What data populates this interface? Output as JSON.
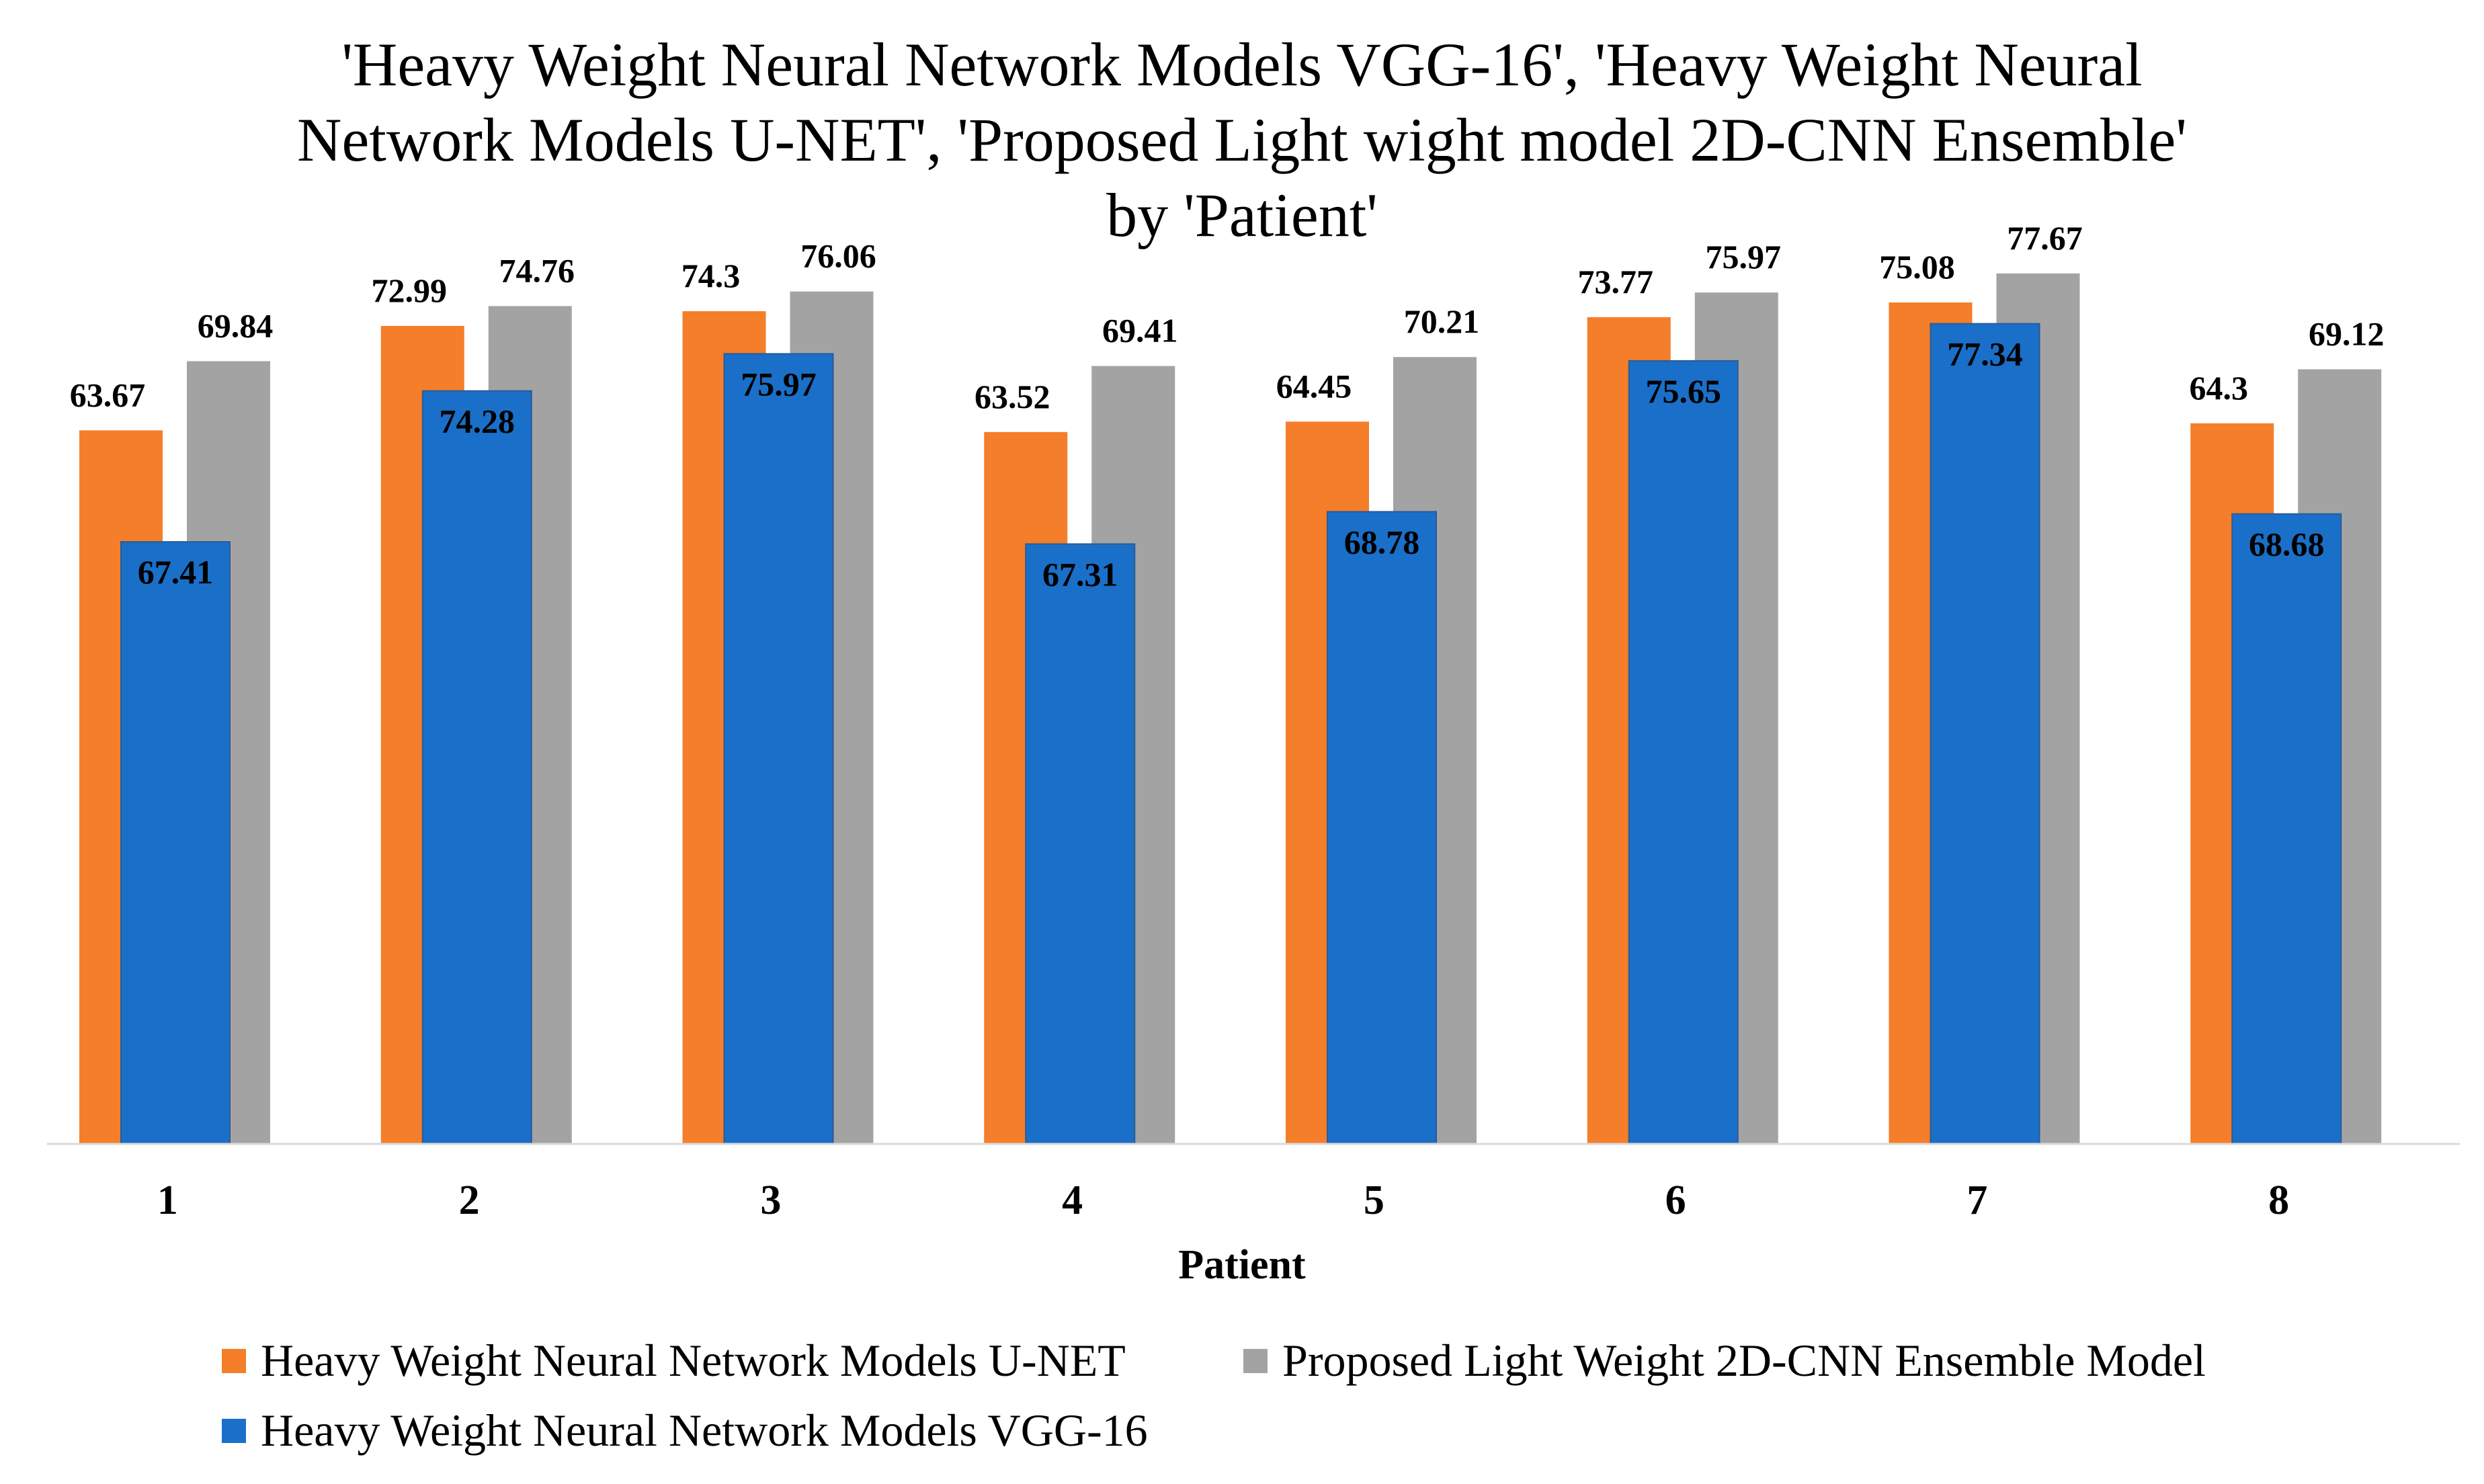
{
  "title_lines": [
    "'Heavy Weight Neural Network Models VGG-16', 'Heavy Weight Neural",
    "Network Models U-NET', 'Proposed Light wight model 2D-CNN Ensemble'",
    "by 'Patient'"
  ],
  "colors": {
    "unet": "#f47e2a",
    "proposed": "#a3a3a3",
    "vgg": "#1a6fc8",
    "axis": "#d9d9d9"
  },
  "legend": {
    "unet": "Heavy Weight Neural Network Models U-NET",
    "proposed": "Proposed Light Weight 2D-CNN Ensemble Model",
    "vgg": "Heavy Weight Neural Network Models VGG-16"
  },
  "chart_data": {
    "type": "bar",
    "title": "'Heavy Weight Neural Network Models VGG-16', 'Heavy Weight Neural Network Models U-NET', 'Proposed Light wight model 2D-CNN Ensemble' by 'Patient'",
    "xlabel": "Patient",
    "ylabel": "",
    "ylim": [
      0,
      80
    ],
    "grid": false,
    "legend_position": "bottom",
    "categories": [
      "1",
      "2",
      "3",
      "4",
      "5",
      "6",
      "7",
      "8"
    ],
    "value_labels": {
      "unet": [
        "63.67",
        "72.99",
        "74.3",
        "63.52",
        "64.45",
        "73.77",
        "75.08",
        "64.3"
      ],
      "proposed": [
        "69.84",
        "74.76",
        "76.06",
        "69.41",
        "70.21",
        "75.97",
        "77.67",
        "69.12"
      ],
      "vgg": [
        "67.41",
        "74.28",
        "75.97",
        "67.31",
        "68.78",
        "75.65",
        "77.34",
        "68.68"
      ]
    },
    "series": [
      {
        "key": "unet",
        "name": "Heavy Weight Neural Network Models U-NET",
        "values": [
          63.67,
          72.99,
          74.3,
          63.52,
          64.45,
          73.77,
          75.08,
          64.3
        ]
      },
      {
        "key": "proposed",
        "name": "Proposed Light Weight 2D-CNN Ensemble Model",
        "values": [
          69.84,
          74.76,
          76.06,
          69.41,
          70.21,
          75.97,
          77.67,
          69.12
        ]
      },
      {
        "key": "vgg",
        "name": "Heavy Weight Neural Network Models VGG-16",
        "values": [
          67.41,
          74.28,
          75.97,
          67.31,
          68.78,
          75.65,
          77.34,
          68.68
        ]
      }
    ]
  }
}
